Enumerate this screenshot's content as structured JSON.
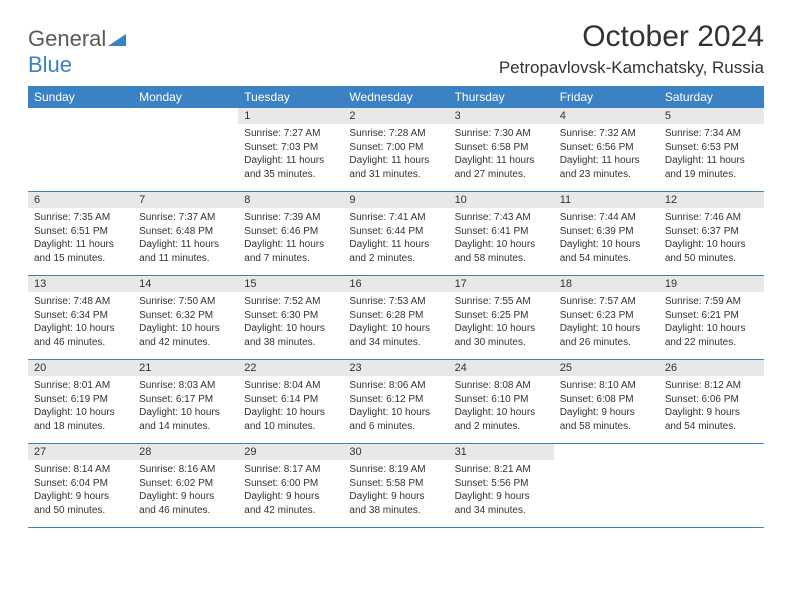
{
  "logo": {
    "general": "General",
    "blue": "Blue"
  },
  "title": "October 2024",
  "location": "Petropavlovsk-Kamchatsky, Russia",
  "colors": {
    "header_bg": "#3b82c4",
    "day_num_bg": "#e8e8e8",
    "text": "#333333",
    "logo_gray": "#5a5a5a",
    "logo_blue": "#3b82c4"
  },
  "weekdays": [
    "Sunday",
    "Monday",
    "Tuesday",
    "Wednesday",
    "Thursday",
    "Friday",
    "Saturday"
  ],
  "weeks": [
    [
      null,
      null,
      {
        "n": "1",
        "sr": "Sunrise: 7:27 AM",
        "ss": "Sunset: 7:03 PM",
        "dl": "Daylight: 11 hours and 35 minutes."
      },
      {
        "n": "2",
        "sr": "Sunrise: 7:28 AM",
        "ss": "Sunset: 7:00 PM",
        "dl": "Daylight: 11 hours and 31 minutes."
      },
      {
        "n": "3",
        "sr": "Sunrise: 7:30 AM",
        "ss": "Sunset: 6:58 PM",
        "dl": "Daylight: 11 hours and 27 minutes."
      },
      {
        "n": "4",
        "sr": "Sunrise: 7:32 AM",
        "ss": "Sunset: 6:56 PM",
        "dl": "Daylight: 11 hours and 23 minutes."
      },
      {
        "n": "5",
        "sr": "Sunrise: 7:34 AM",
        "ss": "Sunset: 6:53 PM",
        "dl": "Daylight: 11 hours and 19 minutes."
      }
    ],
    [
      {
        "n": "6",
        "sr": "Sunrise: 7:35 AM",
        "ss": "Sunset: 6:51 PM",
        "dl": "Daylight: 11 hours and 15 minutes."
      },
      {
        "n": "7",
        "sr": "Sunrise: 7:37 AM",
        "ss": "Sunset: 6:48 PM",
        "dl": "Daylight: 11 hours and 11 minutes."
      },
      {
        "n": "8",
        "sr": "Sunrise: 7:39 AM",
        "ss": "Sunset: 6:46 PM",
        "dl": "Daylight: 11 hours and 7 minutes."
      },
      {
        "n": "9",
        "sr": "Sunrise: 7:41 AM",
        "ss": "Sunset: 6:44 PM",
        "dl": "Daylight: 11 hours and 2 minutes."
      },
      {
        "n": "10",
        "sr": "Sunrise: 7:43 AM",
        "ss": "Sunset: 6:41 PM",
        "dl": "Daylight: 10 hours and 58 minutes."
      },
      {
        "n": "11",
        "sr": "Sunrise: 7:44 AM",
        "ss": "Sunset: 6:39 PM",
        "dl": "Daylight: 10 hours and 54 minutes."
      },
      {
        "n": "12",
        "sr": "Sunrise: 7:46 AM",
        "ss": "Sunset: 6:37 PM",
        "dl": "Daylight: 10 hours and 50 minutes."
      }
    ],
    [
      {
        "n": "13",
        "sr": "Sunrise: 7:48 AM",
        "ss": "Sunset: 6:34 PM",
        "dl": "Daylight: 10 hours and 46 minutes."
      },
      {
        "n": "14",
        "sr": "Sunrise: 7:50 AM",
        "ss": "Sunset: 6:32 PM",
        "dl": "Daylight: 10 hours and 42 minutes."
      },
      {
        "n": "15",
        "sr": "Sunrise: 7:52 AM",
        "ss": "Sunset: 6:30 PM",
        "dl": "Daylight: 10 hours and 38 minutes."
      },
      {
        "n": "16",
        "sr": "Sunrise: 7:53 AM",
        "ss": "Sunset: 6:28 PM",
        "dl": "Daylight: 10 hours and 34 minutes."
      },
      {
        "n": "17",
        "sr": "Sunrise: 7:55 AM",
        "ss": "Sunset: 6:25 PM",
        "dl": "Daylight: 10 hours and 30 minutes."
      },
      {
        "n": "18",
        "sr": "Sunrise: 7:57 AM",
        "ss": "Sunset: 6:23 PM",
        "dl": "Daylight: 10 hours and 26 minutes."
      },
      {
        "n": "19",
        "sr": "Sunrise: 7:59 AM",
        "ss": "Sunset: 6:21 PM",
        "dl": "Daylight: 10 hours and 22 minutes."
      }
    ],
    [
      {
        "n": "20",
        "sr": "Sunrise: 8:01 AM",
        "ss": "Sunset: 6:19 PM",
        "dl": "Daylight: 10 hours and 18 minutes."
      },
      {
        "n": "21",
        "sr": "Sunrise: 8:03 AM",
        "ss": "Sunset: 6:17 PM",
        "dl": "Daylight: 10 hours and 14 minutes."
      },
      {
        "n": "22",
        "sr": "Sunrise: 8:04 AM",
        "ss": "Sunset: 6:14 PM",
        "dl": "Daylight: 10 hours and 10 minutes."
      },
      {
        "n": "23",
        "sr": "Sunrise: 8:06 AM",
        "ss": "Sunset: 6:12 PM",
        "dl": "Daylight: 10 hours and 6 minutes."
      },
      {
        "n": "24",
        "sr": "Sunrise: 8:08 AM",
        "ss": "Sunset: 6:10 PM",
        "dl": "Daylight: 10 hours and 2 minutes."
      },
      {
        "n": "25",
        "sr": "Sunrise: 8:10 AM",
        "ss": "Sunset: 6:08 PM",
        "dl": "Daylight: 9 hours and 58 minutes."
      },
      {
        "n": "26",
        "sr": "Sunrise: 8:12 AM",
        "ss": "Sunset: 6:06 PM",
        "dl": "Daylight: 9 hours and 54 minutes."
      }
    ],
    [
      {
        "n": "27",
        "sr": "Sunrise: 8:14 AM",
        "ss": "Sunset: 6:04 PM",
        "dl": "Daylight: 9 hours and 50 minutes."
      },
      {
        "n": "28",
        "sr": "Sunrise: 8:16 AM",
        "ss": "Sunset: 6:02 PM",
        "dl": "Daylight: 9 hours and 46 minutes."
      },
      {
        "n": "29",
        "sr": "Sunrise: 8:17 AM",
        "ss": "Sunset: 6:00 PM",
        "dl": "Daylight: 9 hours and 42 minutes."
      },
      {
        "n": "30",
        "sr": "Sunrise: 8:19 AM",
        "ss": "Sunset: 5:58 PM",
        "dl": "Daylight: 9 hours and 38 minutes."
      },
      {
        "n": "31",
        "sr": "Sunrise: 8:21 AM",
        "ss": "Sunset: 5:56 PM",
        "dl": "Daylight: 9 hours and 34 minutes."
      },
      null,
      null
    ]
  ]
}
